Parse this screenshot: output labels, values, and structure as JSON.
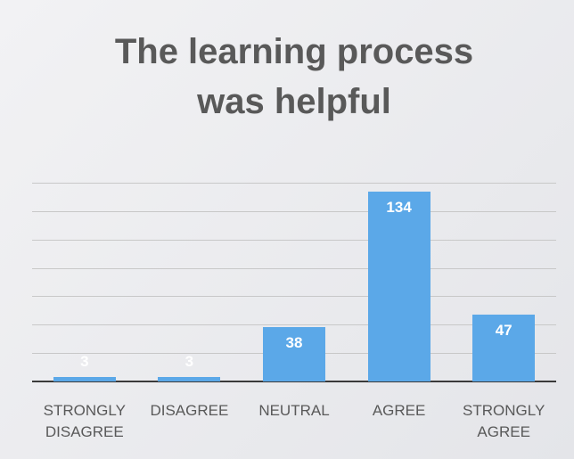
{
  "chart_data": {
    "type": "bar",
    "title": "The learning process was helpful",
    "categories": [
      "STRONGLY DISAGREE",
      "DISAGREE",
      "NEUTRAL",
      "AGREE",
      "STRONGLY AGREE"
    ],
    "values": [
      3,
      3,
      38,
      134,
      47
    ],
    "color": "#5ba8e8",
    "ylim": [
      0,
      140
    ],
    "yticks": [
      0,
      20,
      40,
      60,
      80,
      100,
      120,
      140
    ],
    "grid": true
  }
}
